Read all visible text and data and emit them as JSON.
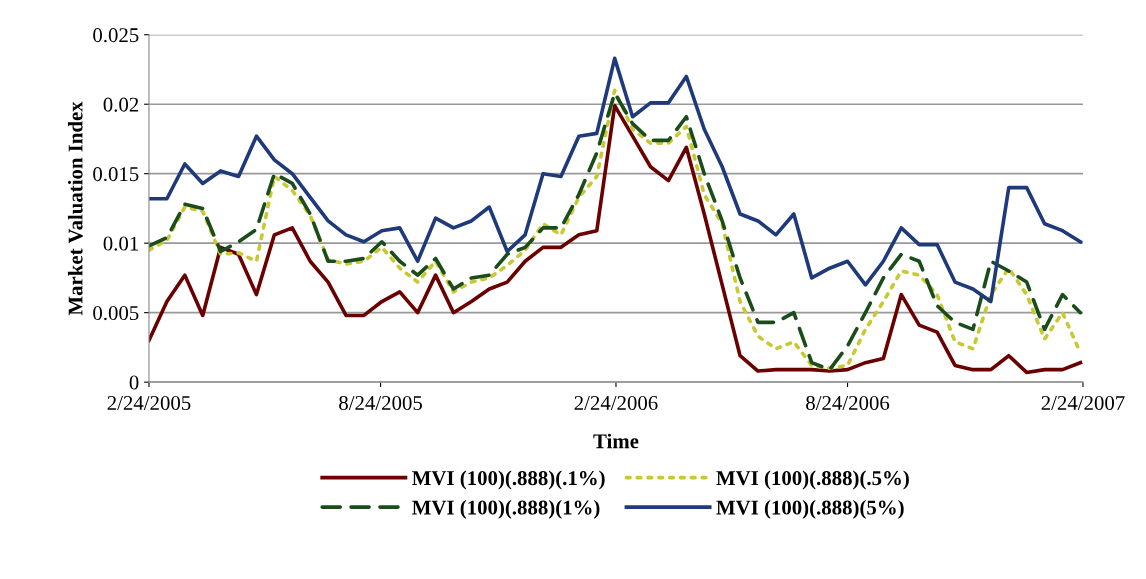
{
  "chart_data": {
    "type": "line",
    "xlabel": "Time",
    "ylabel": "Market Valuation Index",
    "x": [
      "2005-02-24",
      "2005-03-10",
      "2005-03-24",
      "2005-04-07",
      "2005-04-21",
      "2005-05-05",
      "2005-05-19",
      "2005-06-02",
      "2005-06-16",
      "2005-06-30",
      "2005-07-14",
      "2005-07-28",
      "2005-08-11",
      "2005-08-25",
      "2005-09-08",
      "2005-09-22",
      "2005-10-06",
      "2005-10-20",
      "2005-11-03",
      "2005-11-17",
      "2005-12-01",
      "2005-12-15",
      "2005-12-29",
      "2006-01-12",
      "2006-01-26",
      "2006-02-09",
      "2006-02-23",
      "2006-03-09",
      "2006-03-23",
      "2006-04-06",
      "2006-04-20",
      "2006-05-04",
      "2006-05-18",
      "2006-06-01",
      "2006-06-15",
      "2006-06-29",
      "2006-07-13",
      "2006-07-27",
      "2006-08-10",
      "2006-08-24",
      "2006-09-07",
      "2006-09-21",
      "2006-10-05",
      "2006-10-19",
      "2006-11-02",
      "2006-11-16",
      "2006-11-30",
      "2006-12-14",
      "2006-12-28",
      "2007-01-11",
      "2007-01-25",
      "2007-02-08",
      "2007-02-22"
    ],
    "series": [
      {
        "name": "MVI (100)(.888)(.1%)",
        "color": "#6b0000",
        "line_style": "solid",
        "values": [
          0.003,
          0.0058,
          0.0077,
          0.0048,
          0.0097,
          0.0092,
          0.0063,
          0.0106,
          0.0111,
          0.0087,
          0.0072,
          0.0048,
          0.0048,
          0.0058,
          0.0065,
          0.005,
          0.0077,
          0.005,
          0.0058,
          0.0067,
          0.0072,
          0.0087,
          0.0097,
          0.0097,
          0.0106,
          0.0109,
          0.0199,
          0.0177,
          0.0155,
          0.0145,
          0.0169,
          0.0121,
          0.007,
          0.0019,
          0.0008,
          0.0009,
          0.0009,
          0.0009,
          0.0008,
          0.0009,
          0.0014,
          0.0017,
          0.0063,
          0.0041,
          0.0036,
          0.0012,
          0.0009,
          0.0009,
          0.0019,
          0.0007,
          0.0009,
          0.0009,
          0.0014
        ]
      },
      {
        "name": "MVI (100)(.888)(.5%)",
        "color": "#c8c832",
        "line_style": "dotted",
        "values": [
          0.0095,
          0.0102,
          0.0126,
          0.0123,
          0.0092,
          0.0093,
          0.0087,
          0.0148,
          0.0138,
          0.012,
          0.0088,
          0.0085,
          0.0087,
          0.0097,
          0.0082,
          0.0072,
          0.0087,
          0.0065,
          0.0072,
          0.0075,
          0.0084,
          0.0095,
          0.0114,
          0.0106,
          0.0133,
          0.0148,
          0.021,
          0.0182,
          0.0172,
          0.0172,
          0.0184,
          0.0135,
          0.0114,
          0.0058,
          0.0033,
          0.0024,
          0.0029,
          0.0012,
          0.001,
          0.0012,
          0.0038,
          0.0058,
          0.008,
          0.0077,
          0.0063,
          0.0029,
          0.0024,
          0.0063,
          0.0082,
          0.0063,
          0.0031,
          0.005,
          0.0021
        ]
      },
      {
        "name": "MVI (100)(.888)(1%)",
        "color": "#1b4d1b",
        "line_style": "dashed",
        "values": [
          0.0098,
          0.0104,
          0.0128,
          0.0125,
          0.0094,
          0.0101,
          0.011,
          0.015,
          0.0143,
          0.0121,
          0.0087,
          0.0087,
          0.0089,
          0.0101,
          0.0087,
          0.0077,
          0.0089,
          0.0067,
          0.0075,
          0.0077,
          0.0092,
          0.0097,
          0.0111,
          0.0111,
          0.0135,
          0.0165,
          0.0208,
          0.0186,
          0.0174,
          0.0174,
          0.0191,
          0.015,
          0.0116,
          0.0075,
          0.0043,
          0.0043,
          0.005,
          0.0014,
          0.0009,
          0.0026,
          0.005,
          0.0075,
          0.0092,
          0.0087,
          0.0055,
          0.0043,
          0.0038,
          0.0087,
          0.008,
          0.0072,
          0.0038,
          0.0063,
          0.005
        ]
      },
      {
        "name": "MVI (100)(.888)(5%)",
        "color": "#1f3a7a",
        "line_style": "solid",
        "values": [
          0.0132,
          0.0132,
          0.0157,
          0.0143,
          0.0152,
          0.0148,
          0.0177,
          0.016,
          0.015,
          0.0133,
          0.0116,
          0.0106,
          0.0101,
          0.0109,
          0.0111,
          0.0087,
          0.0118,
          0.0111,
          0.0116,
          0.0126,
          0.0094,
          0.0106,
          0.015,
          0.0148,
          0.0177,
          0.0179,
          0.0233,
          0.0191,
          0.0201,
          0.0201,
          0.022,
          0.0182,
          0.0155,
          0.0121,
          0.0116,
          0.0106,
          0.0121,
          0.0075,
          0.0082,
          0.0087,
          0.007,
          0.0087,
          0.0111,
          0.0099,
          0.0099,
          0.0072,
          0.0067,
          0.0058,
          0.014,
          0.014,
          0.0114,
          0.0109,
          0.0101
        ]
      }
    ],
    "xlim": [
      "2005-02-24",
      "2007-02-24"
    ],
    "xticks": [
      {
        "value": "2005-02-24",
        "label": "2/24/2005"
      },
      {
        "value": "2005-08-24",
        "label": "8/24/2005"
      },
      {
        "value": "2006-02-24",
        "label": "2/24/2006"
      },
      {
        "value": "2006-08-24",
        "label": "8/24/2006"
      },
      {
        "value": "2007-02-24",
        "label": "2/24/2007"
      }
    ],
    "ylim": [
      0,
      0.025
    ],
    "yticks": [
      0,
      0.005,
      0.01,
      0.015,
      0.02,
      0.025
    ],
    "grid": "y",
    "legend": "bottom"
  }
}
